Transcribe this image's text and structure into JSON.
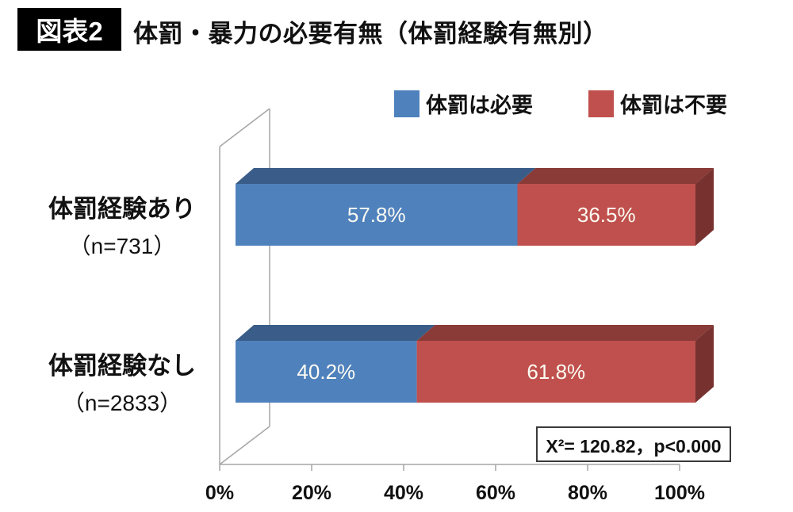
{
  "header": {
    "badge": "図表2",
    "title": "体罰・暴力の必要有無（体罰経験有無別）"
  },
  "legend": {
    "position": "top",
    "items": [
      {
        "label": "体罰は必要",
        "color": "#4f81bd"
      },
      {
        "label": "体罰は不要",
        "color": "#c0504d"
      }
    ]
  },
  "chart_data": {
    "type": "bar",
    "orientation": "horizontal",
    "stacked": true,
    "effect": "3d",
    "title": "体罰・暴力の必要有無（体罰経験有無別）",
    "categories": [
      "体罰経験あり",
      "体罰経験なし"
    ],
    "category_notes": [
      "（n=731）",
      "（n=2833）"
    ],
    "series": [
      {
        "name": "体罰は必要",
        "color": "#4f81bd",
        "values": [
          57.8,
          40.2
        ]
      },
      {
        "name": "体罰は不要",
        "color": "#c0504d",
        "values": [
          36.5,
          61.8
        ]
      }
    ],
    "data_labels": [
      [
        "57.8%",
        "36.5%"
      ],
      [
        "40.2%",
        "61.8%"
      ]
    ],
    "x_ticks": [
      "0%",
      "20%",
      "40%",
      "60%",
      "80%",
      "100%"
    ],
    "xlim": [
      0,
      100
    ],
    "grid": false,
    "annotation": "X²= 120.82，p<0.000",
    "legend_position": "top"
  }
}
